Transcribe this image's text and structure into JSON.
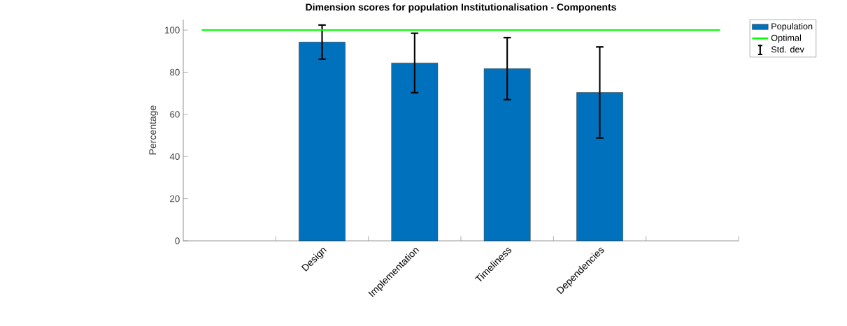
{
  "chart_data": {
    "type": "bar",
    "title": "Dimension scores for population Institutionalisation - Components",
    "ylabel": "Percentage",
    "categories": [
      "Design",
      "Implementation",
      "Timeliness",
      "Dependencies"
    ],
    "series": [
      {
        "name": "Population",
        "color": "#0072bd",
        "values": [
          94.3,
          84.4,
          81.7,
          70.4
        ],
        "errors": [
          8.1,
          14.1,
          14.7,
          21.6
        ]
      }
    ],
    "ylim": [
      0,
      105
    ],
    "yticks": [
      0,
      20,
      40,
      60,
      80,
      100
    ],
    "ref_lines": [
      {
        "axis": "y",
        "value": 100,
        "label": "Optimal",
        "color": "#00ff00"
      }
    ],
    "legend": "top right",
    "annotations": [
      "Std. dev"
    ]
  }
}
